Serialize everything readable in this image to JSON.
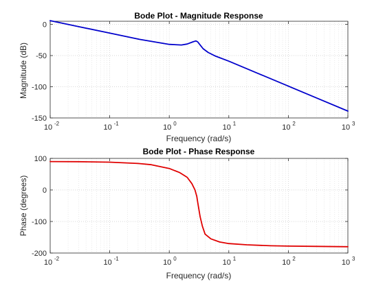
{
  "chart_data": [
    {
      "type": "line",
      "title": "Bode Plot - Magnitude Response",
      "xlabel": "Frequency (rad/s)",
      "ylabel": "Magnitude (dB)",
      "xscale": "log",
      "xlim": [
        0.01,
        1000
      ],
      "ylim": [
        -150,
        5
      ],
      "xticks": [
        {
          "base": "10",
          "exp": "-2",
          "value": 0.01
        },
        {
          "base": "10",
          "exp": "-1",
          "value": 0.1
        },
        {
          "base": "10",
          "exp": "0",
          "value": 1
        },
        {
          "base": "10",
          "exp": "1",
          "value": 10
        },
        {
          "base": "10",
          "exp": "2",
          "value": 100
        },
        {
          "base": "10",
          "exp": "3",
          "value": 1000
        }
      ],
      "yticks": [
        {
          "label": "0",
          "value": 0
        },
        {
          "label": "-50",
          "value": -50
        },
        {
          "label": "-100",
          "value": -100
        },
        {
          "label": "-150",
          "value": -150
        }
      ],
      "grid": true,
      "series": [
        {
          "color": "#0000cc",
          "x": [
            0.01,
            0.0316,
            0.1,
            0.316,
            1,
            1.6,
            2.0,
            2.5,
            2.8,
            3.0,
            3.3,
            3.7,
            4.5,
            6,
            10,
            31.6,
            100,
            316,
            1000
          ],
          "y": [
            6,
            -4,
            -14,
            -24,
            -32,
            -33,
            -31.5,
            -28,
            -26.5,
            -28,
            -33,
            -39,
            -45,
            -51,
            -59,
            -79,
            -99,
            -119,
            -139
          ]
        }
      ]
    },
    {
      "type": "line",
      "title": "Bode Plot - Phase Response",
      "xlabel": "Frequency (rad/s)",
      "ylabel": "Phase (degrees)",
      "xscale": "log",
      "xlim": [
        0.01,
        1000
      ],
      "ylim": [
        -200,
        100
      ],
      "xticks": [
        {
          "base": "10",
          "exp": "-2",
          "value": 0.01
        },
        {
          "base": "10",
          "exp": "-1",
          "value": 0.1
        },
        {
          "base": "10",
          "exp": "0",
          "value": 1
        },
        {
          "base": "10",
          "exp": "1",
          "value": 10
        },
        {
          "base": "10",
          "exp": "2",
          "value": 100
        },
        {
          "base": "10",
          "exp": "3",
          "value": 1000
        }
      ],
      "yticks": [
        {
          "label": "100",
          "value": 100
        },
        {
          "label": "0",
          "value": 0
        },
        {
          "label": "-100",
          "value": -100
        },
        {
          "label": "-200",
          "value": -200
        }
      ],
      "grid": true,
      "series": [
        {
          "color": "#e00000",
          "x": [
            0.01,
            0.03,
            0.1,
            0.3,
            0.5,
            1,
            1.5,
            2,
            2.4,
            2.7,
            2.9,
            3.0,
            3.1,
            3.3,
            3.6,
            4,
            5,
            7,
            10,
            20,
            50,
            100,
            300,
            1000
          ],
          "y": [
            90,
            89.5,
            88,
            84,
            80,
            68,
            55,
            40,
            20,
            0,
            -20,
            -38,
            -55,
            -85,
            -115,
            -140,
            -155,
            -165,
            -170,
            -174,
            -177,
            -178,
            -179,
            -180
          ]
        }
      ]
    }
  ]
}
